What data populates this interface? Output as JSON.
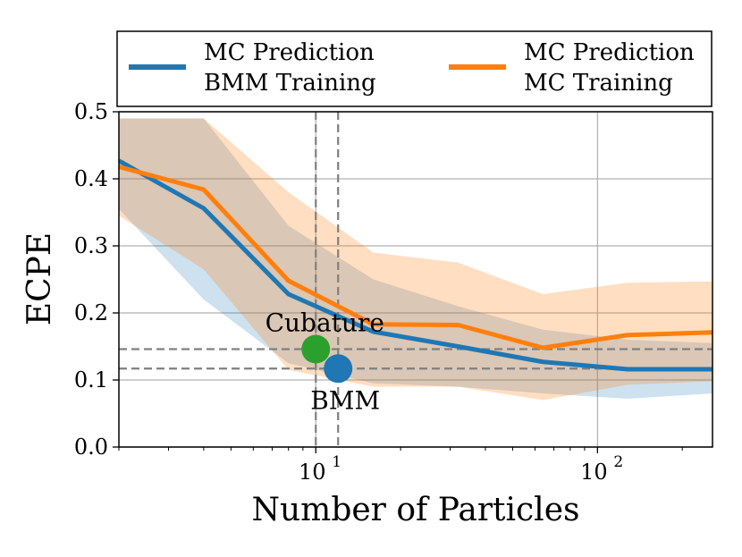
{
  "chart_data": {
    "type": "line",
    "xscale": "log",
    "xlabel": "Number of Particles",
    "ylabel": "ECPE",
    "xlim": [
      2,
      256
    ],
    "ylim": [
      0.0,
      0.5
    ],
    "y_ticks": [
      0.0,
      0.1,
      0.2,
      0.3,
      0.4,
      0.5
    ],
    "y_tick_labels": [
      "0.0",
      "0.1",
      "0.2",
      "0.3",
      "0.4",
      "0.5"
    ],
    "x_ticks": [
      {
        "value": 10,
        "base": "10",
        "exp": "1"
      },
      {
        "value": 100,
        "base": "10",
        "exp": "2"
      }
    ],
    "grid": true,
    "legend": {
      "position": "top",
      "entries": [
        {
          "name": "bmm",
          "line1": "MC Prediction",
          "line2": "BMM Training",
          "color": "#1f77b4"
        },
        {
          "name": "mc",
          "line1": "MC Prediction",
          "line2": "MC Training",
          "color": "#ff7f0e"
        }
      ]
    },
    "series": [
      {
        "name": "MC Prediction BMM Training",
        "color": "#1f77b4",
        "x": [
          2,
          4,
          8,
          16,
          32,
          64,
          128,
          256
        ],
        "y": [
          0.427,
          0.356,
          0.228,
          0.172,
          0.15,
          0.127,
          0.116,
          0.116
        ],
        "upper": [
          0.49,
          0.49,
          0.33,
          0.25,
          0.21,
          0.175,
          0.16,
          0.155
        ],
        "lower": [
          0.355,
          0.22,
          0.125,
          0.095,
          0.09,
          0.08,
          0.072,
          0.08
        ]
      },
      {
        "name": "MC Prediction MC Training",
        "color": "#ff7f0e",
        "x": [
          2,
          4,
          8,
          16,
          32,
          64,
          128,
          256
        ],
        "y": [
          0.418,
          0.384,
          0.248,
          0.183,
          0.182,
          0.148,
          0.167,
          0.171
        ],
        "upper": [
          0.49,
          0.49,
          0.38,
          0.29,
          0.275,
          0.228,
          0.245,
          0.247
        ],
        "lower": [
          0.345,
          0.265,
          0.115,
          0.09,
          0.09,
          0.07,
          0.093,
          0.098
        ]
      }
    ],
    "reference_lines": [
      {
        "name": "cubature",
        "x": 10,
        "y": 0.146
      },
      {
        "name": "bmm",
        "x": 12,
        "y": 0.117
      }
    ],
    "points": [
      {
        "name": "cubature",
        "label": "Cubature",
        "x": 10,
        "y": 0.146,
        "color": "#2ca02c"
      },
      {
        "name": "bmm",
        "label": "BMM",
        "x": 12,
        "y": 0.117,
        "color": "#1f77b4"
      }
    ]
  }
}
